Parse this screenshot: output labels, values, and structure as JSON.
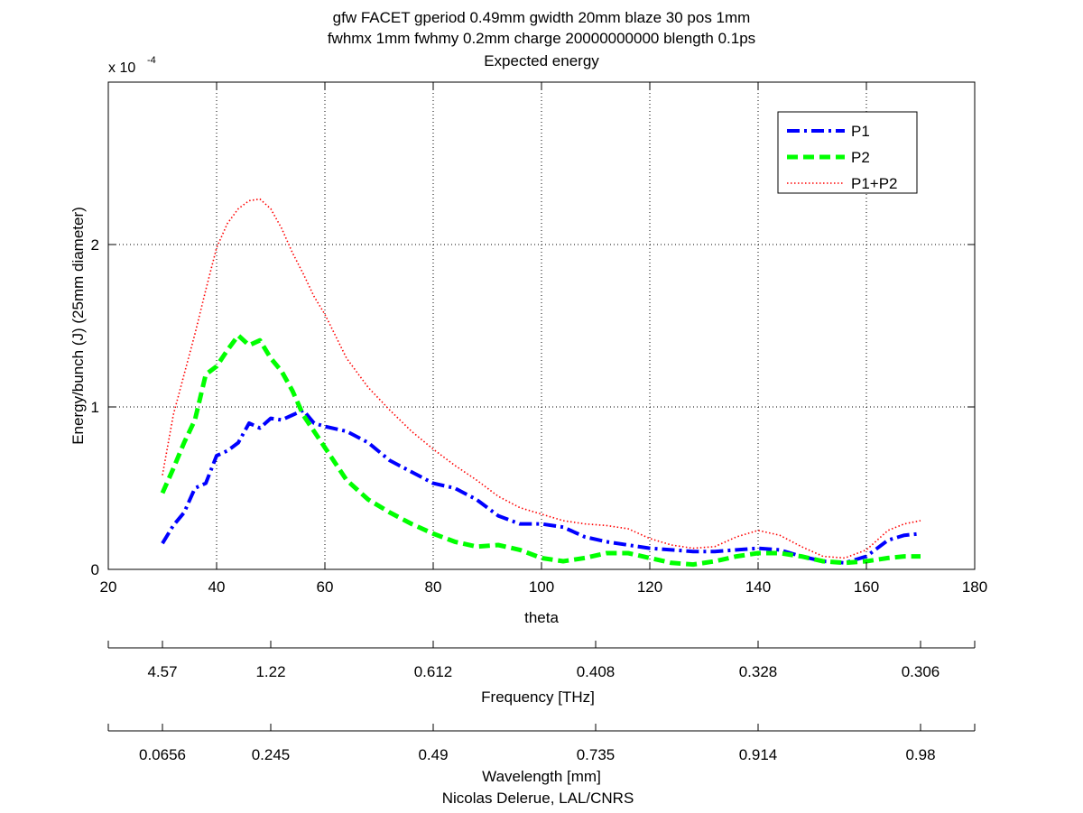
{
  "chart_data": {
    "type": "line",
    "title_lines": [
      "gfw FACET gperiod 0.49mm gwidth 20mm blaze 30 pos 1mm",
      "fwhmx 1mm fwhmy 0.2mm charge 20000000000 blength 0.1ps",
      "Expected energy"
    ],
    "xlabel": "theta",
    "ylabel": "Energy/bunch (J) (25mm diameter)",
    "y_multiplier_base": "x 10",
    "y_multiplier_exp": "-4",
    "xlim": [
      20,
      180
    ],
    "ylim": [
      0,
      3
    ],
    "x_ticks": [
      20,
      40,
      60,
      80,
      100,
      120,
      140,
      160,
      180
    ],
    "y_ticks": [
      0,
      1,
      2
    ],
    "grid": true,
    "legend_position": "top-right",
    "series": [
      {
        "name": "P1",
        "color": "#0000ff",
        "style": "dash-dot",
        "points": [
          [
            30,
            0.16
          ],
          [
            32,
            0.27
          ],
          [
            34,
            0.35
          ],
          [
            36,
            0.5
          ],
          [
            38,
            0.53
          ],
          [
            40,
            0.7
          ],
          [
            42,
            0.73
          ],
          [
            44,
            0.78
          ],
          [
            46,
            0.9
          ],
          [
            48,
            0.87
          ],
          [
            50,
            0.93
          ],
          [
            52,
            0.92
          ],
          [
            54,
            0.95
          ],
          [
            56,
            0.98
          ],
          [
            58,
            0.9
          ],
          [
            60,
            0.88
          ],
          [
            64,
            0.85
          ],
          [
            68,
            0.78
          ],
          [
            72,
            0.67
          ],
          [
            76,
            0.6
          ],
          [
            80,
            0.53
          ],
          [
            84,
            0.5
          ],
          [
            88,
            0.43
          ],
          [
            92,
            0.33
          ],
          [
            96,
            0.28
          ],
          [
            100,
            0.28
          ],
          [
            104,
            0.26
          ],
          [
            108,
            0.2
          ],
          [
            112,
            0.17
          ],
          [
            116,
            0.15
          ],
          [
            120,
            0.13
          ],
          [
            124,
            0.12
          ],
          [
            128,
            0.11
          ],
          [
            132,
            0.11
          ],
          [
            136,
            0.12
          ],
          [
            140,
            0.13
          ],
          [
            144,
            0.12
          ],
          [
            148,
            0.08
          ],
          [
            152,
            0.05
          ],
          [
            156,
            0.04
          ],
          [
            160,
            0.08
          ],
          [
            164,
            0.18
          ],
          [
            167,
            0.21
          ],
          [
            170,
            0.22
          ]
        ]
      },
      {
        "name": "P2",
        "color": "#00ff00",
        "style": "dashed",
        "points": [
          [
            30,
            0.47
          ],
          [
            32,
            0.62
          ],
          [
            34,
            0.78
          ],
          [
            36,
            0.92
          ],
          [
            38,
            1.2
          ],
          [
            40,
            1.25
          ],
          [
            42,
            1.35
          ],
          [
            44,
            1.44
          ],
          [
            46,
            1.38
          ],
          [
            48,
            1.41
          ],
          [
            50,
            1.3
          ],
          [
            52,
            1.22
          ],
          [
            54,
            1.1
          ],
          [
            56,
            0.95
          ],
          [
            58,
            0.85
          ],
          [
            60,
            0.75
          ],
          [
            64,
            0.55
          ],
          [
            68,
            0.43
          ],
          [
            72,
            0.35
          ],
          [
            76,
            0.28
          ],
          [
            80,
            0.22
          ],
          [
            84,
            0.17
          ],
          [
            88,
            0.14
          ],
          [
            92,
            0.15
          ],
          [
            96,
            0.12
          ],
          [
            100,
            0.07
          ],
          [
            104,
            0.05
          ],
          [
            108,
            0.07
          ],
          [
            112,
            0.1
          ],
          [
            116,
            0.1
          ],
          [
            120,
            0.07
          ],
          [
            124,
            0.04
          ],
          [
            128,
            0.03
          ],
          [
            132,
            0.05
          ],
          [
            136,
            0.08
          ],
          [
            140,
            0.1
          ],
          [
            144,
            0.1
          ],
          [
            148,
            0.08
          ],
          [
            152,
            0.05
          ],
          [
            156,
            0.04
          ],
          [
            160,
            0.05
          ],
          [
            164,
            0.07
          ],
          [
            167,
            0.08
          ],
          [
            170,
            0.08
          ]
        ]
      },
      {
        "name": "P1+P2",
        "color": "#ff0000",
        "style": "dotted",
        "points": [
          [
            30,
            0.58
          ],
          [
            32,
            0.95
          ],
          [
            34,
            1.2
          ],
          [
            36,
            1.45
          ],
          [
            38,
            1.72
          ],
          [
            40,
            1.98
          ],
          [
            42,
            2.13
          ],
          [
            44,
            2.22
          ],
          [
            46,
            2.27
          ],
          [
            48,
            2.28
          ],
          [
            50,
            2.22
          ],
          [
            52,
            2.1
          ],
          [
            54,
            1.95
          ],
          [
            56,
            1.82
          ],
          [
            58,
            1.68
          ],
          [
            60,
            1.57
          ],
          [
            64,
            1.3
          ],
          [
            68,
            1.12
          ],
          [
            72,
            0.98
          ],
          [
            76,
            0.85
          ],
          [
            80,
            0.74
          ],
          [
            84,
            0.64
          ],
          [
            88,
            0.55
          ],
          [
            92,
            0.45
          ],
          [
            96,
            0.38
          ],
          [
            100,
            0.34
          ],
          [
            104,
            0.3
          ],
          [
            108,
            0.28
          ],
          [
            112,
            0.27
          ],
          [
            116,
            0.25
          ],
          [
            120,
            0.19
          ],
          [
            124,
            0.15
          ],
          [
            128,
            0.13
          ],
          [
            132,
            0.14
          ],
          [
            136,
            0.2
          ],
          [
            140,
            0.24
          ],
          [
            144,
            0.21
          ],
          [
            148,
            0.14
          ],
          [
            152,
            0.08
          ],
          [
            156,
            0.07
          ],
          [
            160,
            0.12
          ],
          [
            164,
            0.24
          ],
          [
            167,
            0.28
          ],
          [
            170,
            0.3
          ]
        ]
      }
    ],
    "frequency_axis": {
      "label": "Frequency [THz]",
      "ticks": [
        {
          "theta": 20,
          "label": ""
        },
        {
          "theta": 30,
          "label": "4.57"
        },
        {
          "theta": 50,
          "label": "1.22"
        },
        {
          "theta": 80,
          "label": "0.612"
        },
        {
          "theta": 110,
          "label": "0.408"
        },
        {
          "theta": 140,
          "label": "0.328"
        },
        {
          "theta": 170,
          "label": "0.306"
        },
        {
          "theta": 180,
          "label": ""
        }
      ]
    },
    "wavelength_axis": {
      "label": "Wavelength [mm]",
      "ticks": [
        {
          "theta": 20,
          "label": ""
        },
        {
          "theta": 30,
          "label": "0.0656"
        },
        {
          "theta": 50,
          "label": "0.245"
        },
        {
          "theta": 80,
          "label": "0.49"
        },
        {
          "theta": 110,
          "label": "0.735"
        },
        {
          "theta": 140,
          "label": "0.914"
        },
        {
          "theta": 170,
          "label": "0.98"
        },
        {
          "theta": 180,
          "label": ""
        }
      ]
    },
    "credit": "Nicolas Delerue, LAL/CNRS"
  }
}
